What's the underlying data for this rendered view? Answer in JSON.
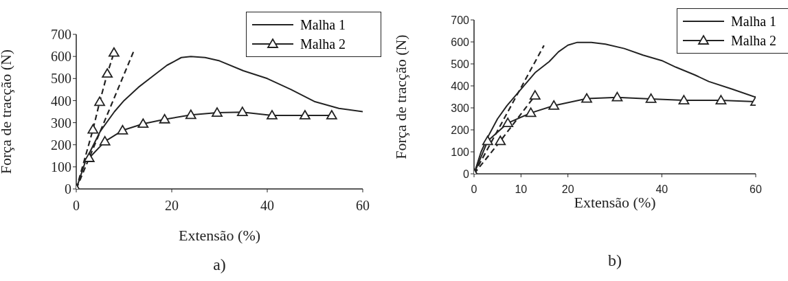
{
  "chart_data": [
    {
      "type": "line",
      "xlabel": "Extensão (%)",
      "ylabel": "Força de tracção (N)",
      "xlim": [
        0,
        60
      ],
      "xticks": [
        0,
        20,
        40,
        60
      ],
      "ylim": [
        0,
        700
      ],
      "yticks": [
        0,
        100,
        200,
        300,
        400,
        500,
        600,
        700
      ],
      "legend": "top right",
      "annotations": [
        "a)"
      ],
      "series": [
        {
          "name": "Malha 1",
          "color": "#222222",
          "marker": "none",
          "line_style": "solid",
          "x": [
            0,
            2,
            5,
            8,
            10,
            13,
            16,
            19,
            22,
            24,
            27,
            30,
            35,
            40,
            45,
            50,
            55,
            60
          ],
          "values": [
            0,
            130,
            260,
            350,
            400,
            460,
            510,
            560,
            595,
            600,
            595,
            580,
            535,
            500,
            450,
            395,
            365,
            350
          ]
        },
        {
          "name": "Malha 2",
          "color": "#222222",
          "marker": "triangle",
          "line_style": "solid",
          "x": [
            2.7,
            6,
            9.7,
            14,
            18.5,
            24,
            29.5,
            34.8,
            41,
            47.9,
            53.5
          ],
          "values": [
            140,
            215,
            265,
            295,
            315,
            335,
            345,
            348,
            333,
            333,
            333
          ]
        },
        {
          "color": "#222222",
          "marker": "triangle",
          "line_style": "dashed",
          "x": [
            0,
            3.5,
            4.9,
            6.5,
            7.9
          ],
          "values": [
            0,
            269,
            394,
            522,
            617
          ]
        },
        {
          "color": "#222222",
          "marker": "none",
          "line_style": "dashed",
          "x": [
            0,
            12
          ],
          "values": [
            0,
            622
          ]
        }
      ]
    },
    {
      "type": "line",
      "xlabel": "Extensão (%)",
      "ylabel": "Força de tracção (N)",
      "xlim": [
        0,
        60
      ],
      "xticks": [
        0,
        10,
        20,
        40,
        60
      ],
      "ylim": [
        0,
        700
      ],
      "yticks": [
        0,
        100,
        200,
        300,
        400,
        500,
        600,
        700
      ],
      "legend": "top right",
      "annotations": [
        "b)"
      ],
      "series": [
        {
          "name": "Malha 1",
          "color": "#222222",
          "marker": "none",
          "line_style": "solid",
          "x": [
            0,
            1.5,
            3,
            5,
            7,
            9,
            11,
            13,
            16,
            18,
            20,
            22,
            25,
            28,
            32,
            36,
            40,
            43,
            47,
            50,
            55,
            60
          ],
          "values": [
            0,
            100,
            170,
            250,
            310,
            360,
            410,
            460,
            510,
            555,
            585,
            598,
            598,
            590,
            570,
            540,
            515,
            485,
            450,
            420,
            385,
            348
          ]
        },
        {
          "name": "Malha 2",
          "color": "#222222",
          "marker": "triangle",
          "line_style": "solid",
          "x": [
            0,
            2.9,
            7.2,
            12.1,
            17,
            24,
            30.5,
            37.7,
            44.7,
            52.6,
            60
          ],
          "values": [
            0,
            149,
            231,
            277,
            310,
            342,
            348,
            341,
            334,
            334,
            328
          ]
        },
        {
          "color": "#222222",
          "marker": "triangle",
          "line_style": "dashed",
          "x": [
            0,
            5.6,
            13
          ],
          "values": [
            0,
            149,
            356
          ]
        },
        {
          "color": "#222222",
          "marker": "none",
          "line_style": "dashed",
          "x": [
            0,
            14.9
          ],
          "values": [
            0,
            584
          ]
        }
      ]
    }
  ]
}
